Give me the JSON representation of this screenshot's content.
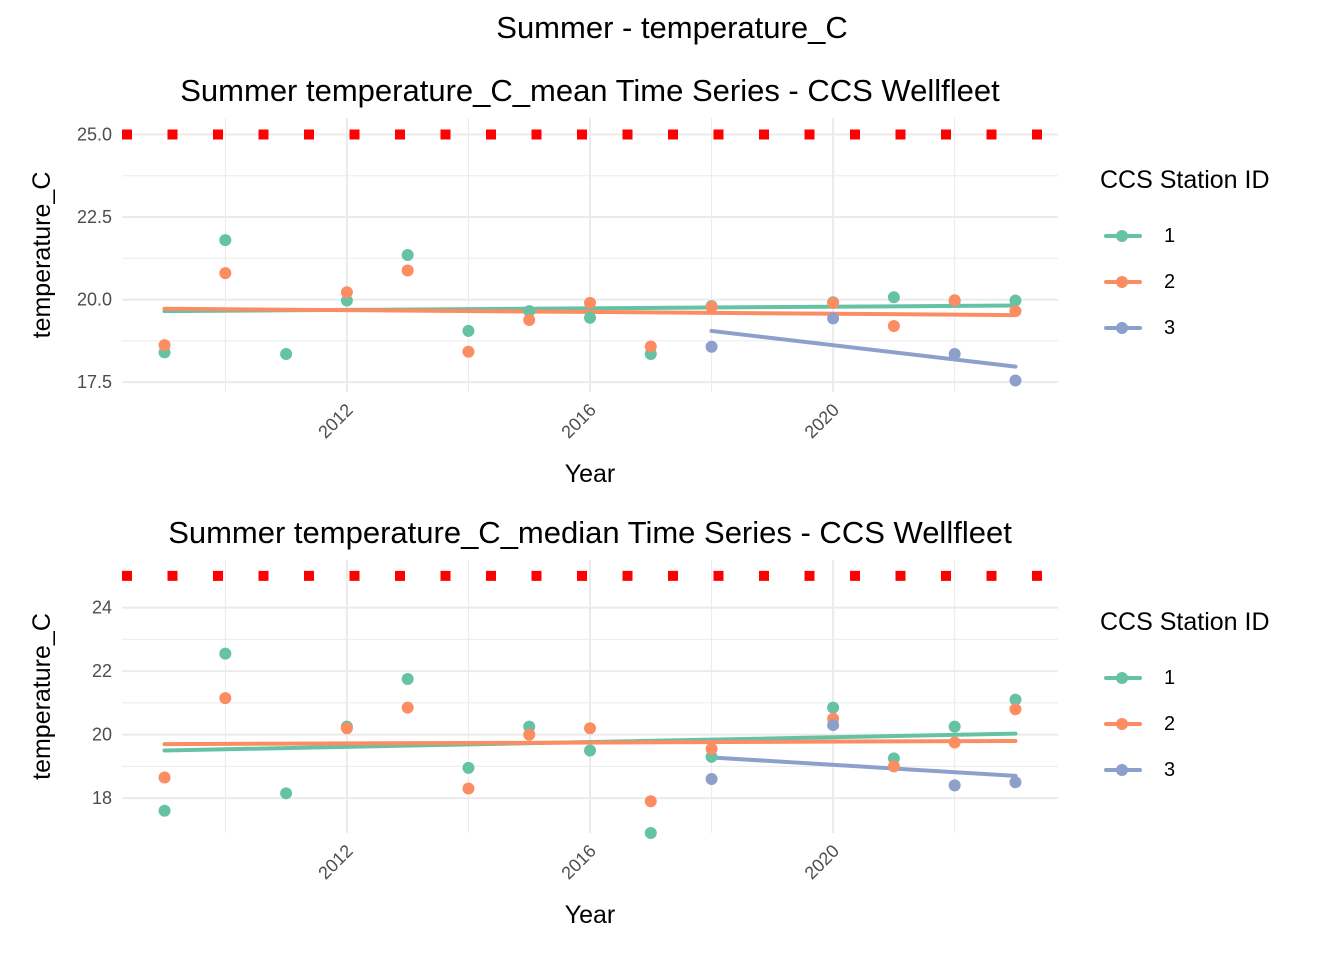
{
  "figure_title": "Summer - temperature_C",
  "palette": {
    "1": "#66C2A5",
    "2": "#FC8D62",
    "3": "#8DA0CB",
    "threshold": "#FF0000",
    "grid": "#EBEBEB"
  },
  "chart_data": [
    {
      "type": "scatter",
      "title": "Summer temperature_C_mean Time Series - CCS Wellfleet",
      "xlabel": "Year",
      "ylabel": "temperature_C",
      "xlim": [
        2008.3,
        2023.7
      ],
      "ylim": [
        17.2,
        25.5
      ],
      "x_ticks": [
        2012,
        2016,
        2020
      ],
      "x_tick_labels": [
        "2012",
        "2016",
        "2020"
      ],
      "y_ticks": [
        17.5,
        20.0,
        22.5,
        25.0
      ],
      "y_tick_labels": [
        "17.5",
        "20.0",
        "22.5",
        "25.0"
      ],
      "grid": true,
      "threshold": {
        "y": 25.0,
        "style": "dotted",
        "color": "#FF0000"
      },
      "legend": {
        "title": "CCS Station ID",
        "position": "right",
        "entries": [
          "1",
          "2",
          "3"
        ]
      },
      "series": [
        {
          "name": "1",
          "color": "#66C2A5",
          "points": [
            [
              2009,
              18.4
            ],
            [
              2010,
              21.8
            ],
            [
              2011,
              18.35
            ],
            [
              2012,
              19.97
            ],
            [
              2013,
              21.35
            ],
            [
              2014,
              19.05
            ],
            [
              2015,
              19.65
            ],
            [
              2016,
              19.45
            ],
            [
              2017,
              18.35
            ],
            [
              2018,
              19.8
            ],
            [
              2020,
              19.92
            ],
            [
              2021,
              20.07
            ],
            [
              2022,
              19.95
            ],
            [
              2023,
              19.97
            ]
          ],
          "trend": [
            [
              2009,
              19.65
            ],
            [
              2023,
              19.82
            ]
          ]
        },
        {
          "name": "2",
          "color": "#FC8D62",
          "points": [
            [
              2009,
              18.62
            ],
            [
              2010,
              20.8
            ],
            [
              2012,
              20.22
            ],
            [
              2013,
              20.88
            ],
            [
              2014,
              18.42
            ],
            [
              2015,
              19.38
            ],
            [
              2016,
              19.9
            ],
            [
              2017,
              18.58
            ],
            [
              2018,
              19.78
            ],
            [
              2020,
              19.9
            ],
            [
              2021,
              19.2
            ],
            [
              2022,
              19.98
            ],
            [
              2023,
              19.65
            ]
          ],
          "trend": [
            [
              2009,
              19.72
            ],
            [
              2023,
              19.53
            ]
          ]
        },
        {
          "name": "3",
          "color": "#8DA0CB",
          "points": [
            [
              2018,
              18.57
            ],
            [
              2020,
              19.43
            ],
            [
              2022,
              18.35
            ],
            [
              2023,
              17.55
            ]
          ],
          "trend": [
            [
              2018,
              19.05
            ],
            [
              2023,
              17.97
            ]
          ]
        }
      ]
    },
    {
      "type": "scatter",
      "title": "Summer temperature_C_median Time Series - CCS Wellfleet",
      "xlabel": "Year",
      "ylabel": "temperature_C",
      "xlim": [
        2008.3,
        2023.7
      ],
      "ylim": [
        16.9,
        25.5
      ],
      "x_ticks": [
        2012,
        2016,
        2020
      ],
      "x_tick_labels": [
        "2012",
        "2016",
        "2020"
      ],
      "y_ticks": [
        18,
        20,
        22,
        24
      ],
      "y_tick_labels": [
        "18",
        "20",
        "22",
        "24"
      ],
      "grid": true,
      "threshold": {
        "y": 25.0,
        "style": "dotted",
        "color": "#FF0000"
      },
      "legend": {
        "title": "CCS Station ID",
        "position": "right",
        "entries": [
          "1",
          "2",
          "3"
        ]
      },
      "series": [
        {
          "name": "1",
          "color": "#66C2A5",
          "points": [
            [
              2009,
              17.6
            ],
            [
              2010,
              22.55
            ],
            [
              2011,
              18.15
            ],
            [
              2012,
              20.25
            ],
            [
              2013,
              21.75
            ],
            [
              2014,
              18.95
            ],
            [
              2015,
              20.25
            ],
            [
              2016,
              19.5
            ],
            [
              2017,
              16.9
            ],
            [
              2018,
              19.3
            ],
            [
              2020,
              20.85
            ],
            [
              2021,
              19.25
            ],
            [
              2022,
              20.25
            ],
            [
              2023,
              21.1
            ]
          ],
          "trend": [
            [
              2009,
              19.5
            ],
            [
              2023,
              20.03
            ]
          ]
        },
        {
          "name": "2",
          "color": "#FC8D62",
          "points": [
            [
              2009,
              18.65
            ],
            [
              2010,
              21.15
            ],
            [
              2012,
              20.2
            ],
            [
              2013,
              20.85
            ],
            [
              2014,
              18.3
            ],
            [
              2015,
              20.0
            ],
            [
              2016,
              20.2
            ],
            [
              2017,
              17.9
            ],
            [
              2018,
              19.55
            ],
            [
              2020,
              20.5
            ],
            [
              2021,
              19.0
            ],
            [
              2022,
              19.75
            ],
            [
              2023,
              20.8
            ]
          ],
          "trend": [
            [
              2009,
              19.7
            ],
            [
              2023,
              19.8
            ]
          ]
        },
        {
          "name": "3",
          "color": "#8DA0CB",
          "points": [
            [
              2018,
              18.6
            ],
            [
              2020,
              20.3
            ],
            [
              2022,
              18.4
            ],
            [
              2023,
              18.5
            ]
          ],
          "trend": [
            [
              2018,
              19.28
            ],
            [
              2023,
              18.7
            ]
          ]
        }
      ]
    }
  ]
}
